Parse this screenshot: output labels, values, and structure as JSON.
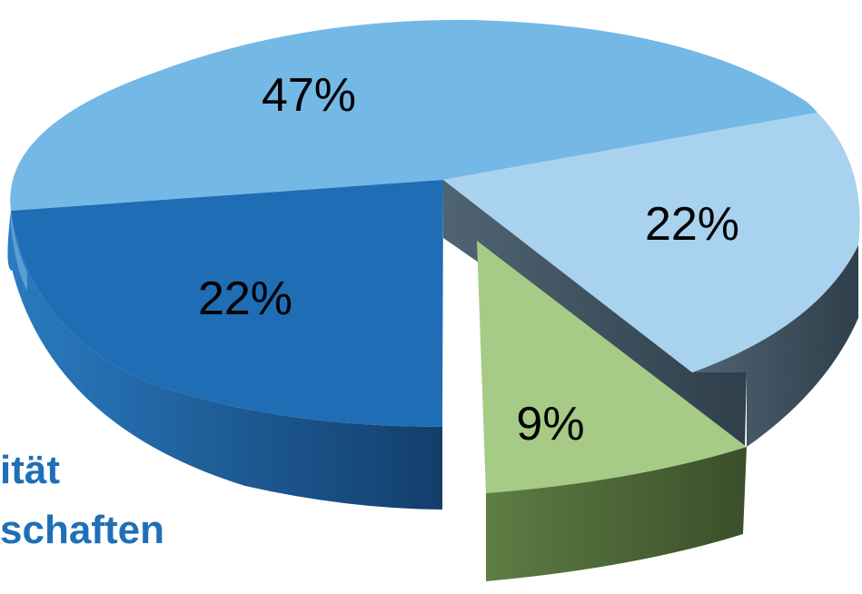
{
  "chart_data": {
    "type": "pie",
    "style": "3d-exploded",
    "slices": [
      {
        "label": "47%",
        "value": 47,
        "color": "#74b8e6"
      },
      {
        "label": "22%",
        "value": 22,
        "color": "#a9d2ef"
      },
      {
        "label": "9%",
        "value": 9,
        "color": "#a5cb86"
      },
      {
        "label": "22%",
        "value": 22,
        "color": "#1f6db4"
      }
    ],
    "fragment_text": [
      "ität",
      "schaften"
    ],
    "fragment_color": "#1f6fb8"
  }
}
